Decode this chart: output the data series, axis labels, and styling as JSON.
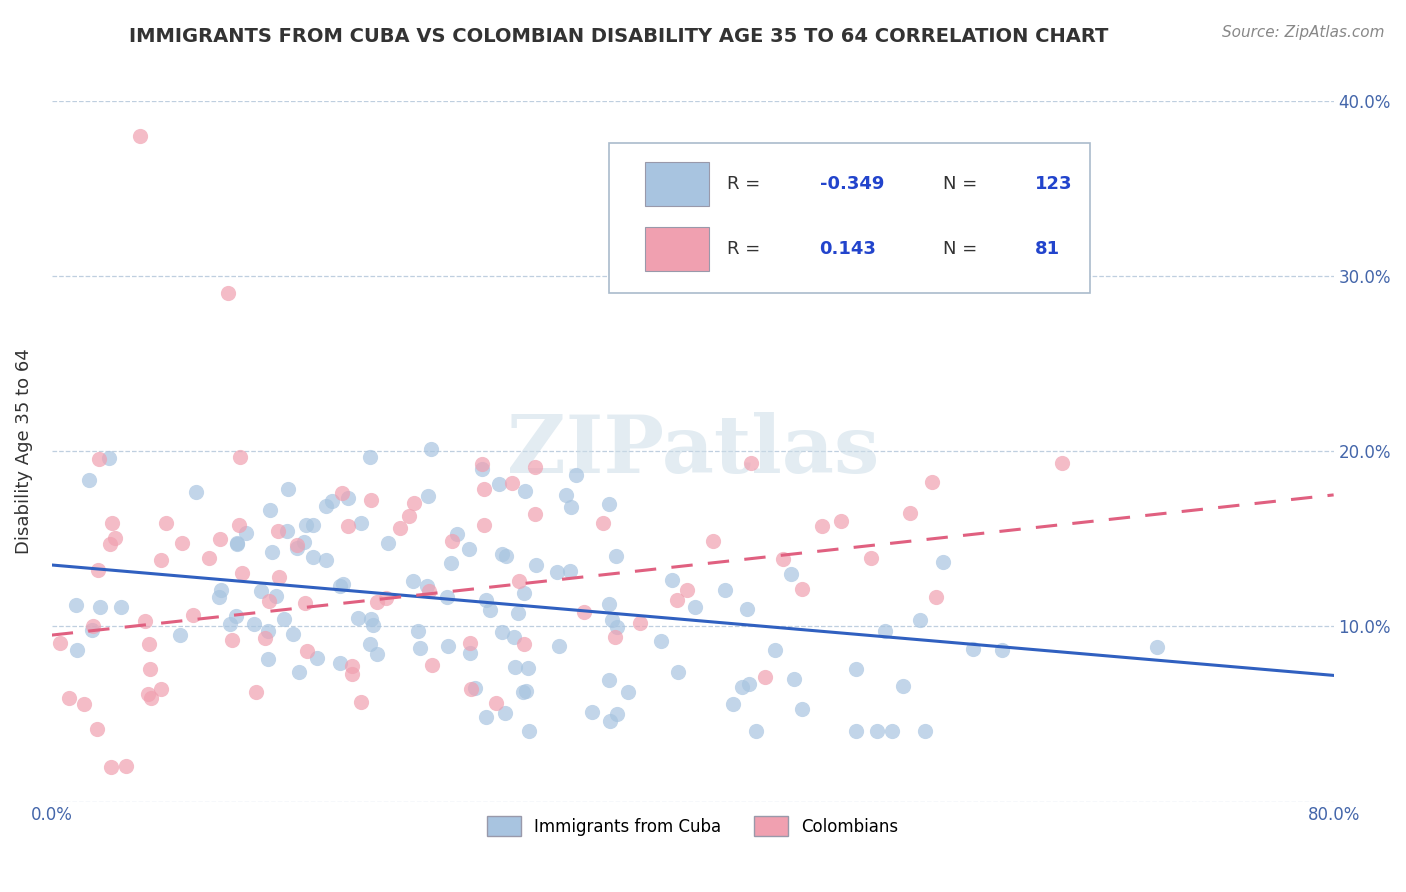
{
  "title": "IMMIGRANTS FROM CUBA VS COLOMBIAN DISABILITY AGE 35 TO 64 CORRELATION CHART",
  "source_text": "Source: ZipAtlas.com",
  "ylabel": "Disability Age 35 to 64",
  "xlim": [
    0.0,
    0.8
  ],
  "ylim": [
    0.0,
    0.4
  ],
  "xtick_positions": [
    0.0,
    0.1,
    0.2,
    0.3,
    0.4,
    0.5,
    0.6,
    0.7,
    0.8
  ],
  "xticklabels": [
    "0.0%",
    "",
    "",
    "",
    "",
    "",
    "",
    "",
    "80.0%"
  ],
  "ytick_positions": [
    0.0,
    0.1,
    0.2,
    0.3,
    0.4
  ],
  "yticklabels": [
    "",
    "10.0%",
    "20.0%",
    "30.0%",
    "40.0%"
  ],
  "blue_color": "#a8c4e0",
  "pink_color": "#f0a0b0",
  "blue_line_color": "#3060c0",
  "pink_line_color": "#e06080",
  "legend_R1": "-0.349",
  "legend_N1": "123",
  "legend_R2": "0.143",
  "legend_N2": "81",
  "blue_trend": [
    0.135,
    0.072
  ],
  "pink_trend": [
    0.095,
    0.175
  ]
}
